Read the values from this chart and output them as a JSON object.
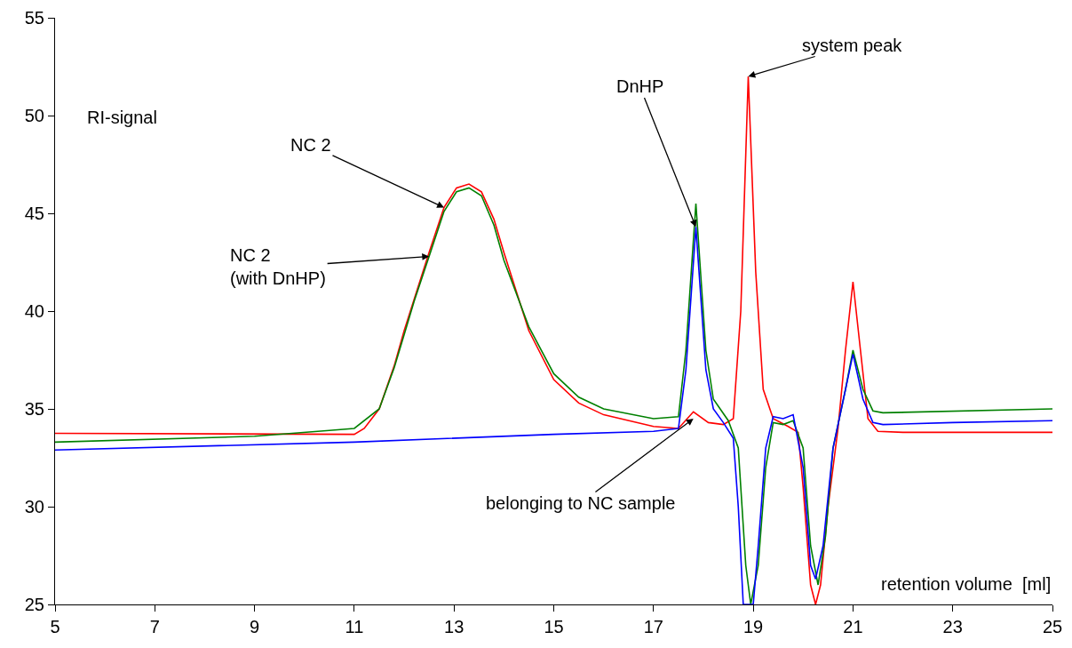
{
  "chart_data": {
    "type": "line",
    "ylabel": "RI-signal",
    "xlabel": "retention volume  [ml]",
    "xlim": [
      5,
      25
    ],
    "xticks": [
      5,
      7,
      9,
      11,
      13,
      15,
      17,
      19,
      21,
      23,
      25
    ],
    "ylim": [
      25,
      55
    ],
    "yticks": [
      25,
      30,
      35,
      40,
      45,
      50,
      55
    ],
    "grid": false,
    "marker": "none",
    "line_style": "solid",
    "series": [
      {
        "color": "#ff0000",
        "x": [
          5,
          11,
          11.2,
          11.5,
          11.8,
          12,
          12.2,
          12.5,
          12.8,
          13.05,
          13.3,
          13.55,
          13.8,
          14,
          14.5,
          15,
          15.5,
          16,
          17,
          17.5,
          17.8,
          18.1,
          18.4,
          18.6,
          18.75,
          18.9,
          19.05,
          19.2,
          19.4,
          19.7,
          19.9,
          20.0,
          20.15,
          20.25,
          20.35,
          20.5,
          20.7,
          20.85,
          21.0,
          21.15,
          21.3,
          21.5,
          22,
          25
        ],
        "values": [
          33.75,
          33.7,
          34.0,
          35.0,
          37.2,
          39,
          40.6,
          43,
          45.3,
          46.3,
          46.5,
          46.1,
          44.7,
          43,
          39,
          36.5,
          35.3,
          34.7,
          34.1,
          34.0,
          34.85,
          34.3,
          34.2,
          34.5,
          40,
          52,
          42,
          36,
          34.5,
          34.1,
          33.8,
          31,
          26,
          25,
          26,
          30,
          34,
          38,
          41.5,
          38,
          34.5,
          33.85,
          33.8,
          33.8
        ]
      },
      {
        "color": "#008000",
        "x": [
          5,
          9,
          10.5,
          11,
          11.5,
          11.8,
          12,
          12.2,
          12.5,
          12.8,
          13.05,
          13.3,
          13.55,
          13.8,
          14,
          14.5,
          15,
          15.5,
          16,
          17,
          17.5,
          17.65,
          17.85,
          18.05,
          18.2,
          18.5,
          18.7,
          18.85,
          18.95,
          19.1,
          19.25,
          19.4,
          19.6,
          19.8,
          20.0,
          20.15,
          20.3,
          20.45,
          20.6,
          20.85,
          21.0,
          21.2,
          21.4,
          21.6,
          25
        ],
        "values": [
          33.3,
          33.6,
          33.9,
          34.0,
          35.0,
          37.1,
          38.8,
          40.5,
          42.8,
          45.1,
          46.1,
          46.3,
          45.9,
          44.4,
          42.6,
          39.2,
          36.8,
          35.6,
          35.0,
          34.5,
          34.6,
          38,
          45.5,
          38,
          35.5,
          34.4,
          33,
          27,
          25,
          27,
          32,
          34.3,
          34.2,
          34.4,
          33,
          28,
          26,
          28.5,
          33,
          36,
          38,
          36,
          34.9,
          34.8,
          35.0
        ]
      },
      {
        "color": "#0000ff",
        "x": [
          5,
          11,
          15,
          17,
          17.5,
          17.65,
          17.85,
          18.05,
          18.2,
          18.4,
          18.6,
          18.7,
          18.8,
          19.0,
          19.1,
          19.25,
          19.4,
          19.6,
          19.8,
          20.0,
          20.15,
          20.25,
          20.4,
          20.6,
          20.85,
          21.0,
          21.2,
          21.4,
          21.6,
          23,
          25
        ],
        "values": [
          32.9,
          33.3,
          33.7,
          33.85,
          34.0,
          37,
          44.3,
          37,
          35,
          34.3,
          33.5,
          30,
          25,
          25,
          28,
          33,
          34.6,
          34.5,
          34.7,
          32,
          27,
          26.3,
          28,
          33,
          36,
          37.8,
          35.5,
          34.3,
          34.2,
          34.3,
          34.4
        ]
      }
    ],
    "annotations": [
      {
        "text": "NC 2",
        "x": 12.8,
        "y": 45.3
      },
      {
        "text": "NC 2\n(with DnHP)",
        "x": 12.5,
        "y": 42.8
      },
      {
        "text": "DnHP",
        "x": 17.85,
        "y": 44.3
      },
      {
        "text": "system peak",
        "x": 18.9,
        "y": 52
      },
      {
        "text": "belonging to NC sample",
        "x": 17.8,
        "y": 34.5
      }
    ]
  }
}
